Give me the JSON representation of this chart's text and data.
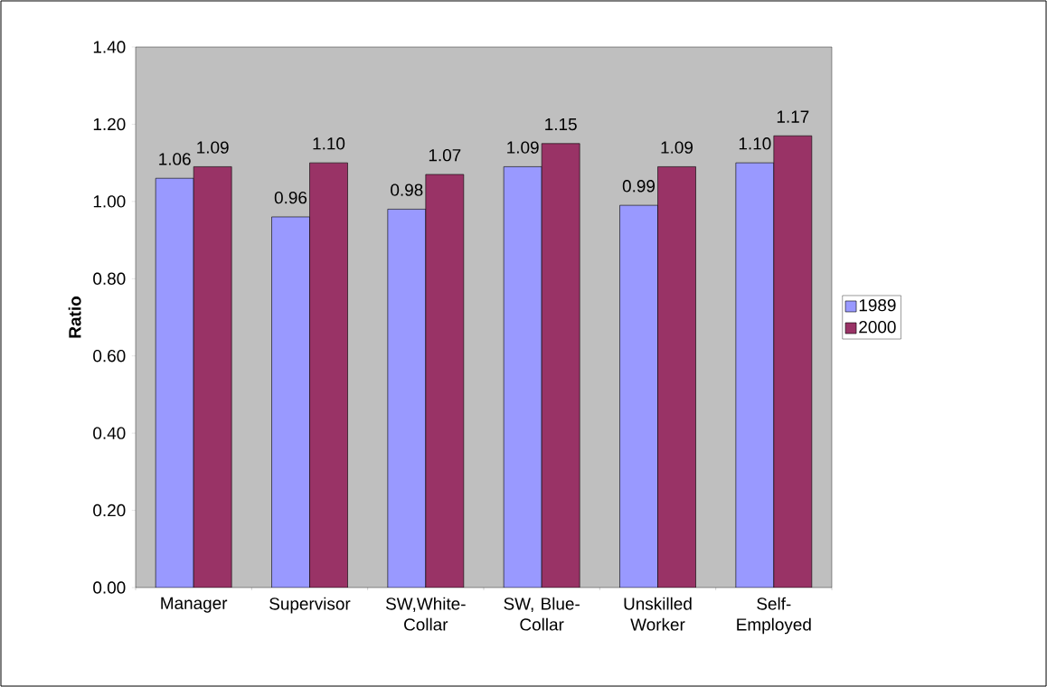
{
  "chart_data": {
    "type": "bar",
    "ylabel": "Ratio",
    "categories": [
      "Manager",
      "Supervisor",
      "SW,White-Collar",
      "SW, Blue-Collar",
      "Unskilled Worker",
      "Self-Employed"
    ],
    "series": [
      {
        "name": "1989",
        "color": "#9999ff",
        "values": [
          1.06,
          0.96,
          0.98,
          1.09,
          0.99,
          1.1
        ],
        "value_labels": [
          "1.06",
          "0.96",
          "0.98",
          "1.09",
          "0.99",
          "1.10"
        ]
      },
      {
        "name": "2000",
        "color": "#993366",
        "values": [
          1.09,
          1.1,
          1.07,
          1.15,
          1.09,
          1.17
        ],
        "value_labels": [
          "1.09",
          "1.10",
          "1.07",
          "1.15",
          "1.09",
          "1.17"
        ]
      }
    ],
    "ylim": [
      0,
      1.4
    ],
    "yticks": [
      {
        "value": 0,
        "label": "0.00"
      },
      {
        "value": 0.2,
        "label": "0.20"
      },
      {
        "value": 0.4,
        "label": "0.40"
      },
      {
        "value": 0.6,
        "label": "0.60"
      },
      {
        "value": 0.8,
        "label": "0.80"
      },
      {
        "value": 1.0,
        "label": "1.00"
      },
      {
        "value": 1.2,
        "label": "1.20"
      },
      {
        "value": 1.4,
        "label": "1.40"
      }
    ],
    "grid": false,
    "legend": "right"
  }
}
